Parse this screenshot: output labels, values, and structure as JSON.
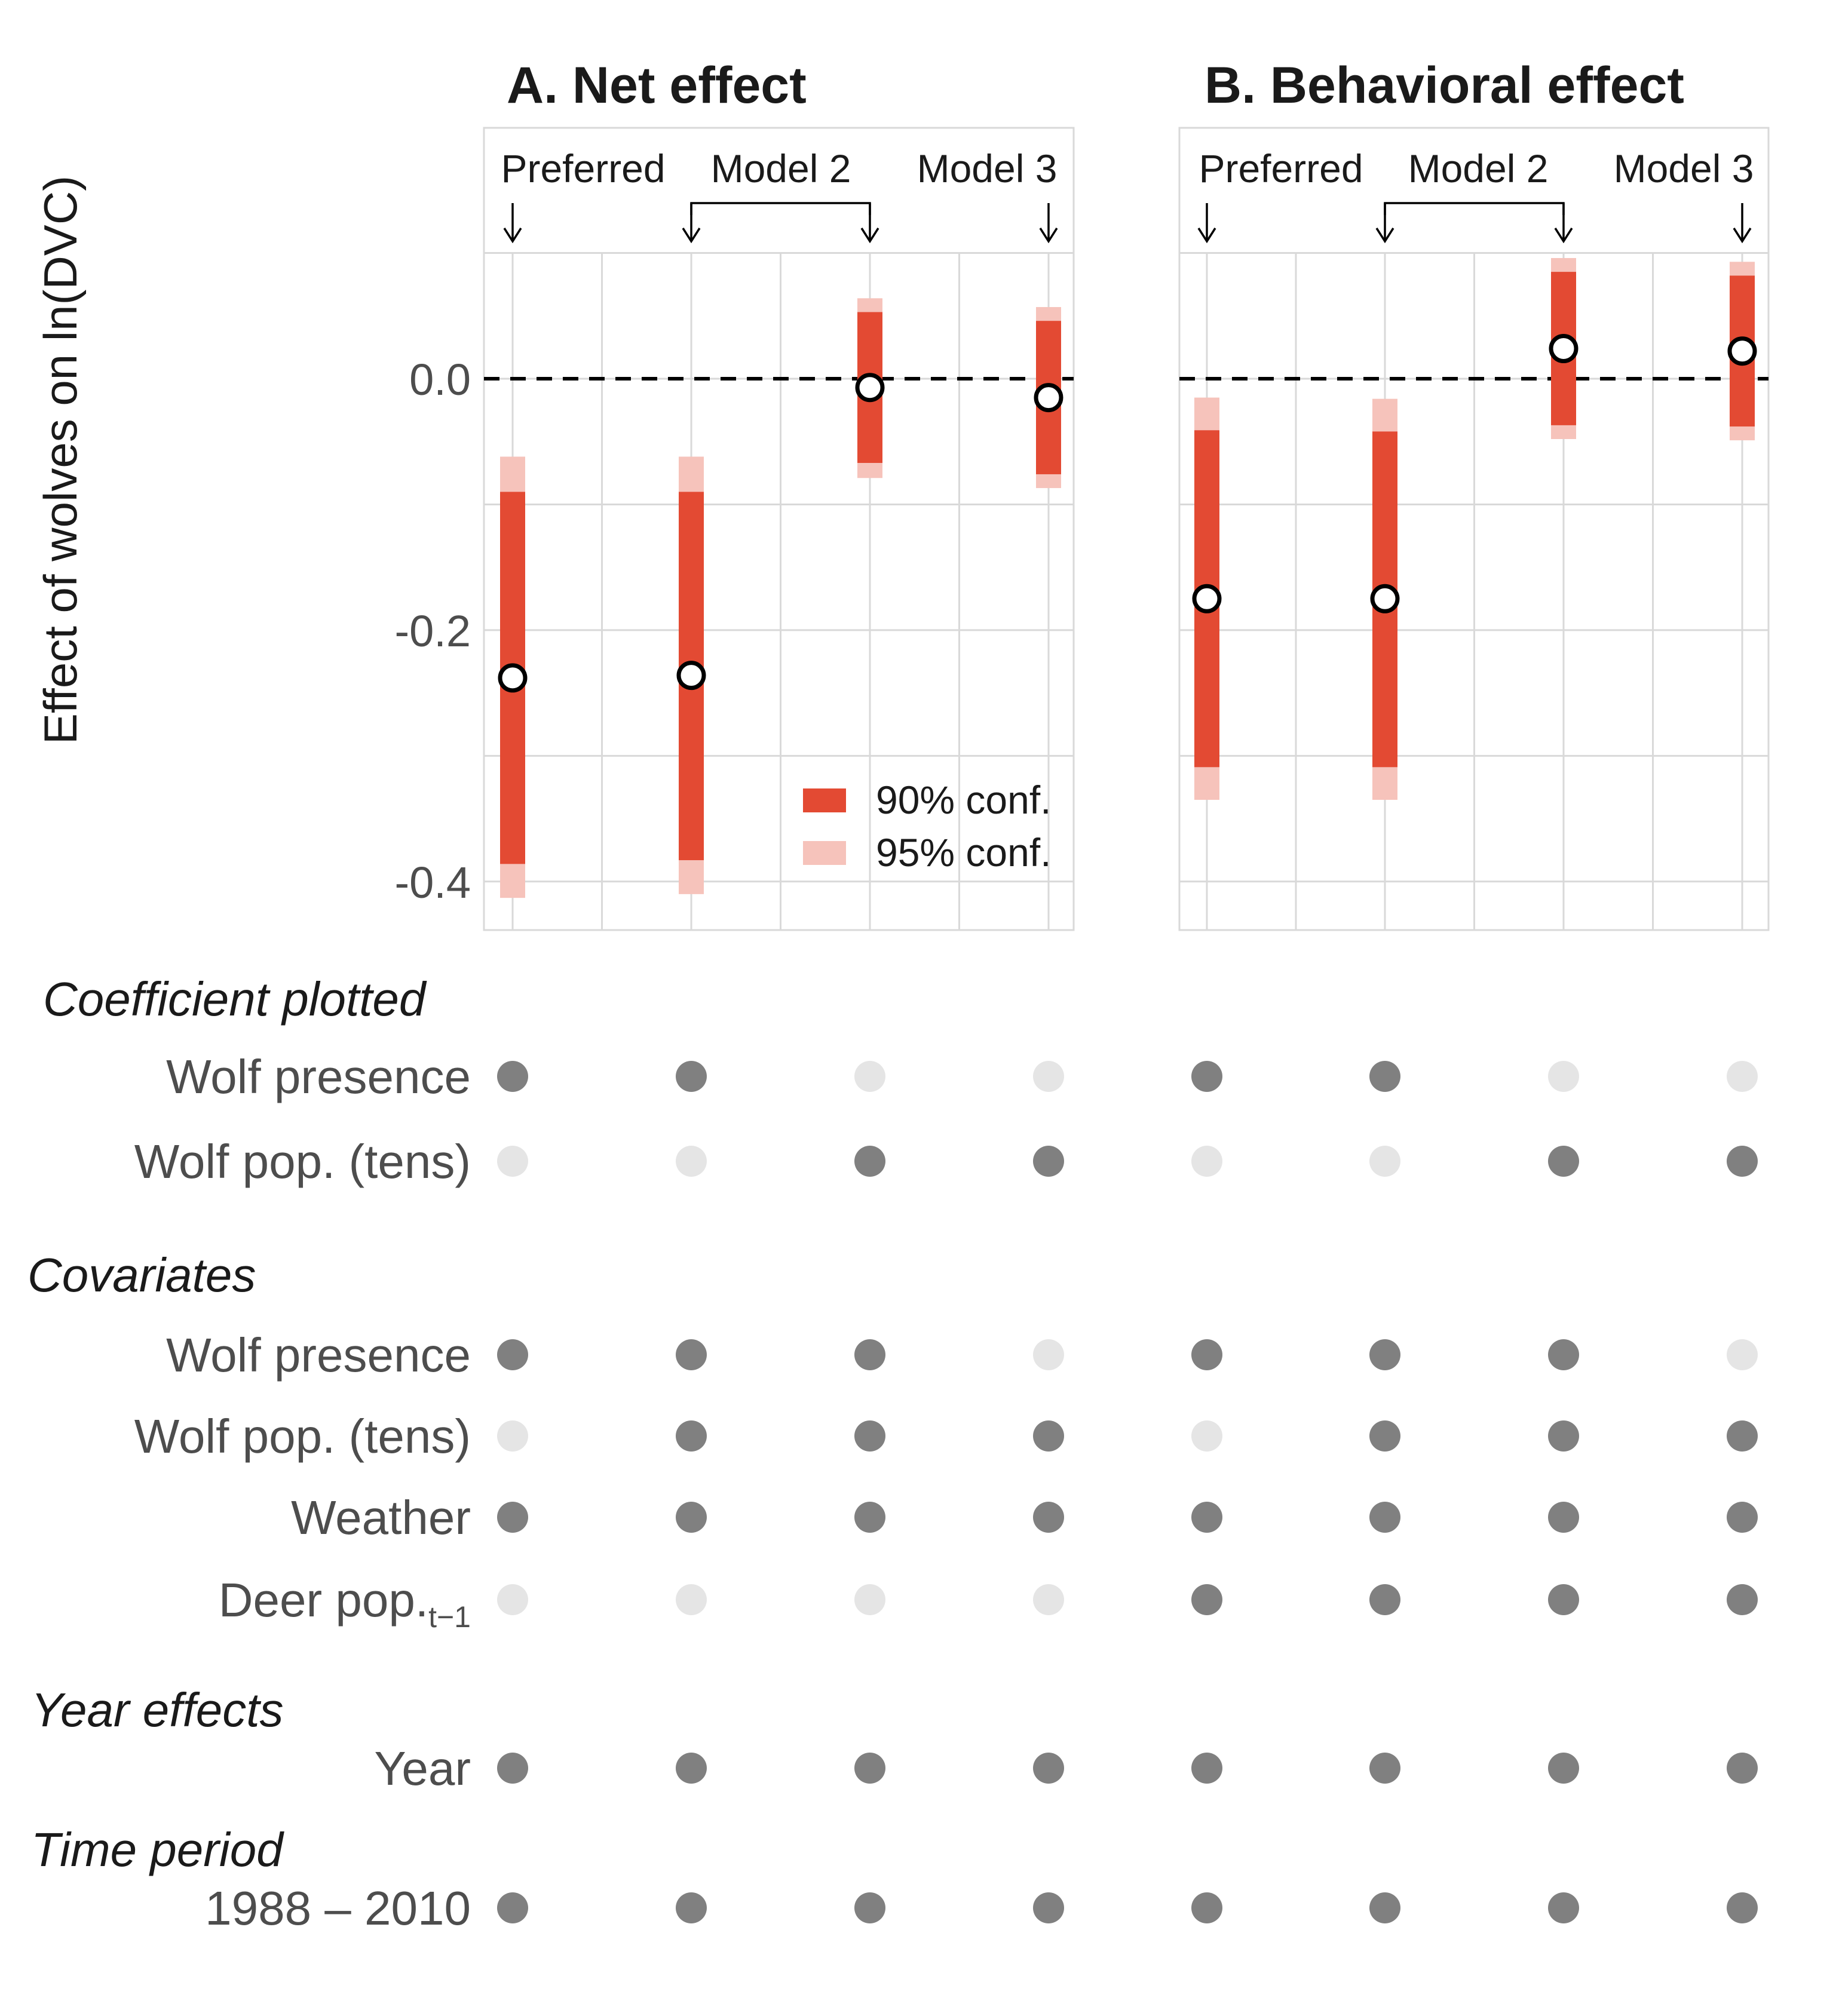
{
  "colors": {
    "ci90": "#E34A33",
    "ci95": "#F6C3BB",
    "dot_on": "#808080",
    "dot_off": "#E5E5E5",
    "grid": "#D9D9D9",
    "text": "#1a1a1a",
    "axis_text": "#4d4d4d"
  },
  "chart_data": {
    "type": "scatter",
    "ylabel": "Effect of wolves on ln(DVC)",
    "ylim": [
      -0.44,
      0.2
    ],
    "y_ticks": [
      0.0,
      -0.2,
      -0.4
    ],
    "y_tick_labels": [
      "0.0",
      "-0.2",
      "-0.4"
    ],
    "reference_line": 0.0,
    "legend": {
      "placement": "bottom-right of panel A",
      "ci90_label": "90% conf.",
      "ci95_label": "95% conf."
    },
    "panels": [
      {
        "title": "A. Net effect",
        "annotations": [
          "Preferred",
          "Model 2",
          "Model 3"
        ],
        "series": [
          {
            "estimate": -0.238,
            "ci90": [
              -0.386,
              -0.09
            ],
            "ci95": [
              -0.413,
              -0.062
            ]
          },
          {
            "estimate": -0.236,
            "ci90": [
              -0.383,
              -0.09
            ],
            "ci95": [
              -0.41,
              -0.062
            ]
          },
          {
            "estimate": -0.007,
            "ci90": [
              -0.067,
              0.053
            ],
            "ci95": [
              -0.079,
              0.064
            ]
          },
          {
            "estimate": -0.015,
            "ci90": [
              -0.076,
              0.046
            ],
            "ci95": [
              -0.087,
              0.057
            ]
          }
        ]
      },
      {
        "title": "B. Behavioral effect",
        "annotations": [
          "Preferred",
          "Model 2",
          "Model 3"
        ],
        "series": [
          {
            "estimate": -0.175,
            "ci90": [
              -0.309,
              -0.041
            ],
            "ci95": [
              -0.335,
              -0.015
            ]
          },
          {
            "estimate": -0.175,
            "ci90": [
              -0.309,
              -0.042
            ],
            "ci95": [
              -0.335,
              -0.016
            ]
          },
          {
            "estimate": 0.024,
            "ci90": [
              -0.037,
              0.085
            ],
            "ci95": [
              -0.048,
              0.096
            ]
          },
          {
            "estimate": 0.022,
            "ci90": [
              -0.038,
              0.082
            ],
            "ci95": [
              -0.049,
              0.093
            ]
          }
        ]
      }
    ]
  },
  "spec_table": {
    "sections": [
      {
        "label": "Coefficient plotted",
        "rows": [
          {
            "label": "Wolf presence",
            "values": [
              1,
              1,
              0,
              0,
              1,
              1,
              0,
              0
            ]
          },
          {
            "label": "Wolf pop. (tens)",
            "values": [
              0,
              0,
              1,
              1,
              0,
              0,
              1,
              1
            ]
          }
        ]
      },
      {
        "label": "Covariates",
        "rows": [
          {
            "label": "Wolf presence",
            "values": [
              1,
              1,
              1,
              0,
              1,
              1,
              1,
              0
            ]
          },
          {
            "label": "Wolf pop. (tens)",
            "values": [
              0,
              1,
              1,
              1,
              0,
              1,
              1,
              1
            ]
          },
          {
            "label": "Weather",
            "values": [
              1,
              1,
              1,
              1,
              1,
              1,
              1,
              1
            ]
          },
          {
            "label": "Deer pop.",
            "label_subscript": "t−1",
            "values": [
              0,
              0,
              0,
              0,
              1,
              1,
              1,
              1
            ]
          }
        ]
      },
      {
        "label": "Year effects",
        "rows": [
          {
            "label": "Year",
            "values": [
              1,
              1,
              1,
              1,
              1,
              1,
              1,
              1
            ]
          }
        ]
      },
      {
        "label": "Time period",
        "rows": [
          {
            "label": "1988 – 2010",
            "values": [
              1,
              1,
              1,
              1,
              1,
              1,
              1,
              1
            ]
          }
        ]
      }
    ]
  }
}
